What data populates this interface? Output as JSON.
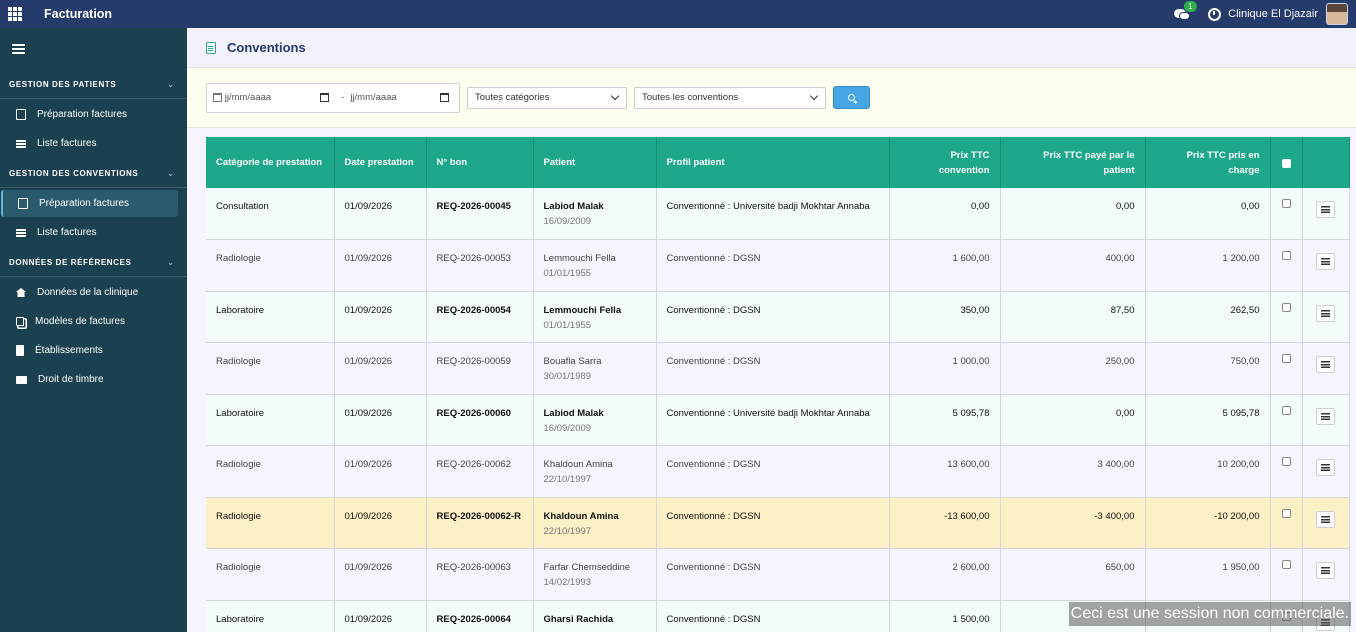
{
  "topbar": {
    "app_title": "Facturation",
    "chat_badge": "1",
    "clinic_name": "Clinique El Djazair"
  },
  "sidebar": {
    "sections": [
      {
        "title": "GESTION DES PATIENTS",
        "items": [
          {
            "label": "Préparation factures",
            "icon": "document-icon",
            "active": false
          },
          {
            "label": "Liste factures",
            "icon": "list-icon",
            "active": false
          }
        ]
      },
      {
        "title": "GESTION DES CONVENTIONS",
        "items": [
          {
            "label": "Préparation factures",
            "icon": "document-icon",
            "active": true
          },
          {
            "label": "Liste factures",
            "icon": "list-icon",
            "active": false
          }
        ]
      },
      {
        "title": "DONNÉES DE RÉFÉRENCES",
        "items": [
          {
            "label": "Données de la clinique",
            "icon": "home-icon",
            "active": false
          },
          {
            "label": "Modèles de factures",
            "icon": "copy-icon",
            "active": false
          },
          {
            "label": "Établissements",
            "icon": "building-icon",
            "active": false
          },
          {
            "label": "Droit de timbre",
            "icon": "money-icon",
            "active": false
          }
        ]
      }
    ]
  },
  "page": {
    "title": "Conventions"
  },
  "filters": {
    "date_from_placeholder": "jj/mm/aaaa",
    "date_separator": "-",
    "date_to_placeholder": "jj/mm/aaaa",
    "category_selected": "Toutes catégories",
    "convention_selected": "Toutes les conventions"
  },
  "table": {
    "headers": {
      "category": "Catégorie de prestation",
      "date": "Date prestation",
      "bon": "N° bon",
      "patient": "Patient",
      "profil": "Profil patient",
      "prix_convention": "Prix TTC convention",
      "prix_patient": "Prix TTC payé par le patient",
      "prix_charge": "Prix TTC pris en charge"
    },
    "rows": [
      {
        "category": "Consultation",
        "date": "01/09/2026",
        "bon": "REQ-2026-00045",
        "patient": "Labiod Malak",
        "dob": "16/09/2009",
        "profil": "Conventionné : Université badji Mokhtar Annaba",
        "prix_convention": "0,00",
        "prix_patient": "0,00",
        "prix_charge": "0,00"
      },
      {
        "category": "Radiologie",
        "date": "01/09/2026",
        "bon": "REQ-2026-00053",
        "patient": "Lemmouchi Fella",
        "dob": "01/01/1955",
        "profil": "Conventionné : DGSN",
        "prix_convention": "1 600,00",
        "prix_patient": "400,00",
        "prix_charge": "1 200,00"
      },
      {
        "category": "Laboratoire",
        "date": "01/09/2026",
        "bon": "REQ-2026-00054",
        "patient": "Lemmouchi Fella",
        "dob": "01/01/1955",
        "profil": "Conventionné : DGSN",
        "prix_convention": "350,00",
        "prix_patient": "87,50",
        "prix_charge": "262,50"
      },
      {
        "category": "Radiologie",
        "date": "01/09/2026",
        "bon": "REQ-2026-00059",
        "patient": "Bouafia Sarra",
        "dob": "30/01/1989",
        "profil": "Conventionné : DGSN",
        "prix_convention": "1 000,00",
        "prix_patient": "250,00",
        "prix_charge": "750,00"
      },
      {
        "category": "Laboratoire",
        "date": "01/09/2026",
        "bon": "REQ-2026-00060",
        "patient": "Labiod Malak",
        "dob": "16/09/2009",
        "profil": "Conventionné : Université badji Mokhtar Annaba",
        "prix_convention": "5 095,78",
        "prix_patient": "0,00",
        "prix_charge": "5 095,78"
      },
      {
        "category": "Radiologie",
        "date": "01/09/2026",
        "bon": "REQ-2026-00062",
        "patient": "Khaldoun Amina",
        "dob": "22/10/1997",
        "profil": "Conventionné : DGSN",
        "prix_convention": "13 600,00",
        "prix_patient": "3 400,00",
        "prix_charge": "10 200,00"
      },
      {
        "category": "Radiologie",
        "date": "01/09/2026",
        "bon": "REQ-2026-00062-R",
        "patient": "Khaldoun Amina",
        "dob": "22/10/1997",
        "profil": "Conventionné : DGSN",
        "prix_convention": "-13 600,00",
        "prix_patient": "-3 400,00",
        "prix_charge": "-10 200,00",
        "highlight": true
      },
      {
        "category": "Radiologie",
        "date": "01/09/2026",
        "bon": "REQ-2026-00063",
        "patient": "Farfar Chemseddine",
        "dob": "14/02/1993",
        "profil": "Conventionné : DGSN",
        "prix_convention": "2 600,00",
        "prix_patient": "650,00",
        "prix_charge": "1 950,00"
      },
      {
        "category": "Laboratoire",
        "date": "01/09/2026",
        "bon": "REQ-2026-00064",
        "patient": "Gharsi Rachida",
        "dob": "",
        "profil": "Conventionné : DGSN",
        "prix_convention": "1 500,00",
        "prix_patient": "",
        "prix_charge": ""
      }
    ]
  },
  "watermark": "Ceci est une session non commerciale.",
  "colors": {
    "topbar": "#243b6b",
    "sidebar": "#1b4150",
    "table_header": "#1ea88b",
    "highlight_row": "#fcf0c6",
    "search_button": "#46a6e4"
  }
}
